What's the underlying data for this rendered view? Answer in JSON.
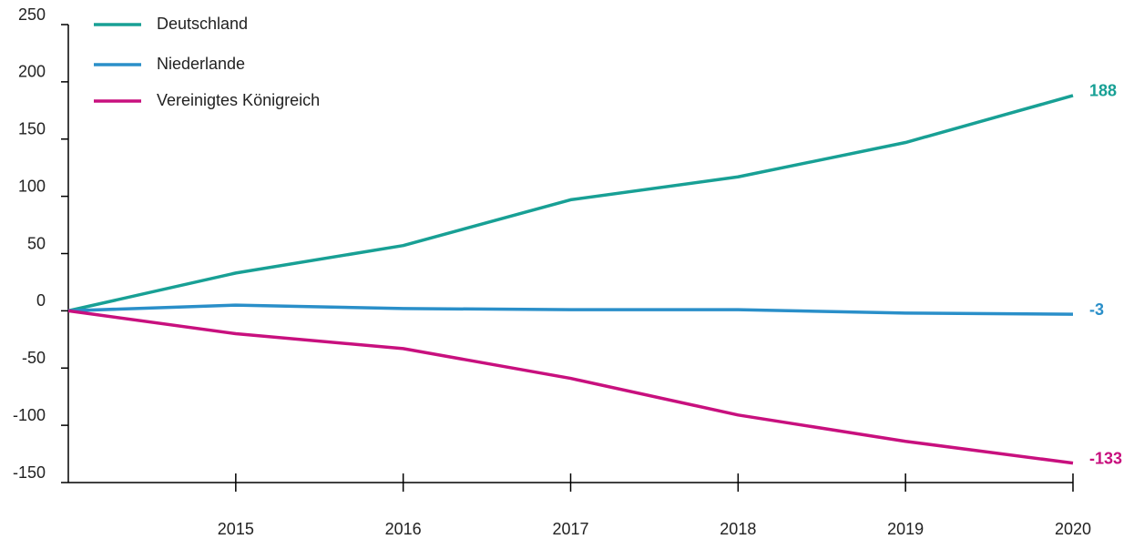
{
  "chart_data": {
    "type": "line",
    "categories": [
      null,
      "2015",
      "2016",
      "2017",
      "2018",
      "2019",
      "2020"
    ],
    "series": [
      {
        "name": "Deutschland",
        "color": "#18a095",
        "values": [
          0,
          33,
          57,
          97,
          117,
          147,
          188
        ]
      },
      {
        "name": "Niederlande",
        "color": "#2a8fc9",
        "values": [
          0,
          5,
          2,
          1,
          1,
          -2,
          -3
        ]
      },
      {
        "name": "Vereinigtes Königreich",
        "color": "#c8107e",
        "values": [
          0,
          -20,
          -33,
          -59,
          -91,
          -114,
          -133
        ]
      }
    ],
    "ylim": [
      -150,
      250
    ],
    "yticks": [
      -150,
      -100,
      -50,
      0,
      50,
      100,
      150,
      200,
      250
    ],
    "grid": false
  }
}
